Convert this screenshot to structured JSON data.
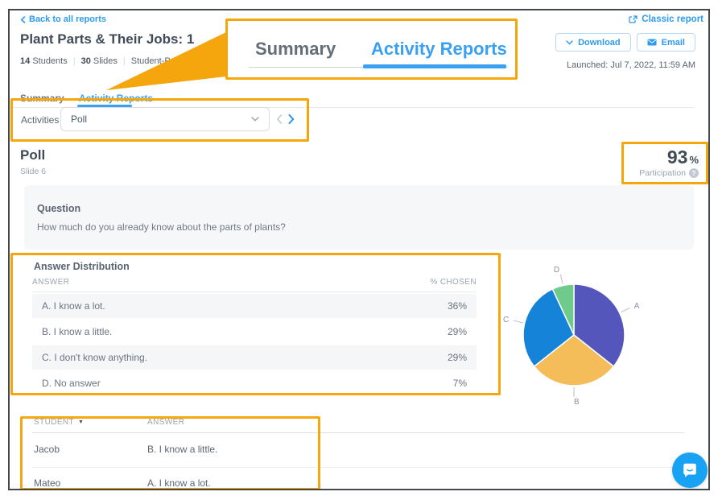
{
  "colors": {
    "accent_blue": "#2E9BF0",
    "active_tab_blue": "#3AA0F2",
    "callout_orange": "#F5A60D",
    "chat_blue": "#17A2F3",
    "title_dark": "#414B57"
  },
  "header": {
    "back_link": "Back to all reports",
    "classic_report_link": "Classic report",
    "title": "Plant Parts & Their Jobs: 1",
    "students_count": "14",
    "students_label": "Students",
    "slides_count": "30",
    "slides_label": "Slides",
    "pace_text": "Student-Paced - A",
    "separator": "|",
    "download_button": "Download",
    "email_button": "Email",
    "launched_text": "Launched: Jul 7, 2022, 11:59 AM",
    "tab_summary": "Summary",
    "tab_activity_reports": "Activity Reports"
  },
  "callout": {
    "tab_summary": "Summary",
    "tab_activity_reports": "Activity Reports"
  },
  "activities_bar": {
    "label": "Activities",
    "selected_option": "Poll"
  },
  "poll_header": {
    "title": "Poll",
    "slide": "Slide 6",
    "participation_value": "93",
    "participation_percent_sign": "%",
    "participation_label": "Participation",
    "help_icon_glyph": "?"
  },
  "question": {
    "heading": "Question",
    "text": "How much do you already know about the parts of plants?"
  },
  "answer_distribution": {
    "heading": "Answer Distribution",
    "col_answer": "ANSWER",
    "col_chosen": "% CHOSEN",
    "rows": [
      {
        "answer": "A. I know a lot.",
        "chosen": "36%"
      },
      {
        "answer": "B. I know a little.",
        "chosen": "29%"
      },
      {
        "answer": "C. I don't know anything.",
        "chosen": "29%"
      },
      {
        "answer": "D. No answer",
        "chosen": "7%"
      }
    ]
  },
  "chart_data": {
    "type": "pie",
    "title": "Answer Distribution",
    "labels": [
      "A",
      "B",
      "C",
      "D"
    ],
    "values": [
      36,
      29,
      29,
      7
    ],
    "colors": [
      "#5456BC",
      "#F4BD5A",
      "#1583D8",
      "#6FCB8B"
    ],
    "units": "% chosen",
    "start_angle": "12 o'clock",
    "direction": "clockwise",
    "legend_position": "none"
  },
  "student_table": {
    "col_student": "STUDENT",
    "sort_indicator": "▼",
    "col_answer": "ANSWER",
    "rows": [
      {
        "student": "Jacob",
        "answer": "B. I know a little."
      },
      {
        "student": "Mateo",
        "answer": "A. I know a lot."
      }
    ]
  }
}
